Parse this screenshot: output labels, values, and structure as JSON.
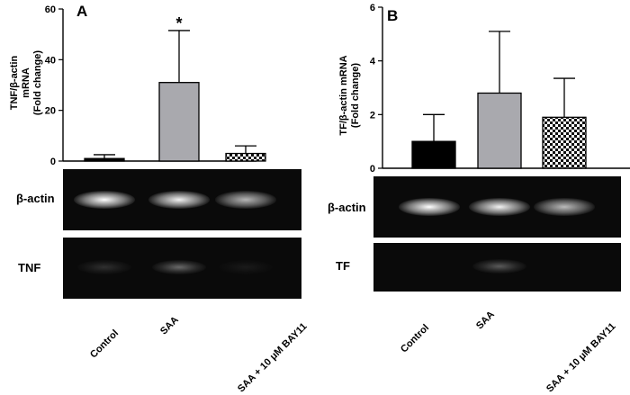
{
  "chart_data": [
    {
      "panel": "A",
      "type": "bar",
      "ylabel_lines": [
        "TNF/β-actin",
        "mRNA",
        "(Fold change)"
      ],
      "ylim": [
        0,
        60
      ],
      "yticks": [
        0,
        20,
        40,
        60
      ],
      "categories": [
        "Control",
        "SAA",
        "SAA + 10 μM BAY11"
      ],
      "values": [
        1,
        31,
        3
      ],
      "errors": [
        1.5,
        20.5,
        3
      ],
      "fills": [
        "#000000",
        "#a9a9ae",
        "checker"
      ],
      "significance": [
        "",
        "*",
        ""
      ],
      "gel_labels": [
        "β-actin",
        "TNF"
      ]
    },
    {
      "panel": "B",
      "type": "bar",
      "ylabel_lines": [
        "TF/β-actin mRNA",
        "(Fold change)"
      ],
      "ylim": [
        0,
        6
      ],
      "yticks": [
        0,
        2,
        4,
        6
      ],
      "categories": [
        "Control",
        "SAA",
        "SAA + 10 μM BAY11"
      ],
      "values": [
        1.0,
        2.8,
        1.9
      ],
      "errors": [
        1.0,
        2.3,
        1.45
      ],
      "fills": [
        "#000000",
        "#a9a9ae",
        "checker"
      ],
      "significance": [
        "",
        "",
        ""
      ],
      "gel_labels": [
        "β-actin",
        "TF"
      ]
    }
  ],
  "gels": [
    {
      "actin_intensity": [
        1.0,
        0.95,
        0.7
      ],
      "target_intensity": [
        0.18,
        0.45,
        0.08
      ]
    },
    {
      "actin_intensity": [
        1.0,
        0.95,
        0.72
      ],
      "target_intensity": [
        0.0,
        0.38,
        0.0
      ]
    }
  ]
}
